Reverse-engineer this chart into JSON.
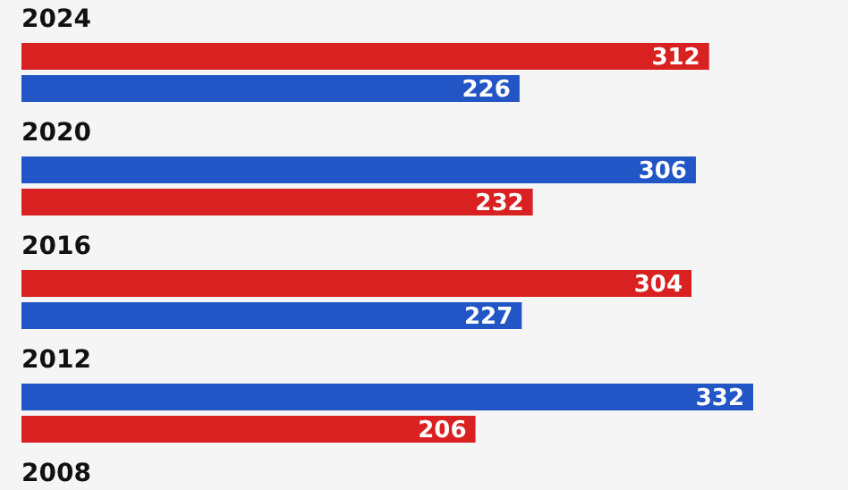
{
  "chart_data": {
    "type": "bar",
    "orientation": "horizontal",
    "categories": [
      "2024",
      "2020",
      "2016",
      "2012",
      "2008"
    ],
    "series": [
      {
        "colors": [
          "#d92121",
          "#2255c5",
          "#d92121",
          "#2255c5",
          null
        ],
        "values": [
          312,
          306,
          304,
          332,
          null
        ]
      },
      {
        "colors": [
          "#2255c5",
          "#d92121",
          "#2255c5",
          "#d92121",
          null
        ],
        "values": [
          226,
          232,
          227,
          206,
          null
        ]
      }
    ],
    "data_labels": true
  }
}
